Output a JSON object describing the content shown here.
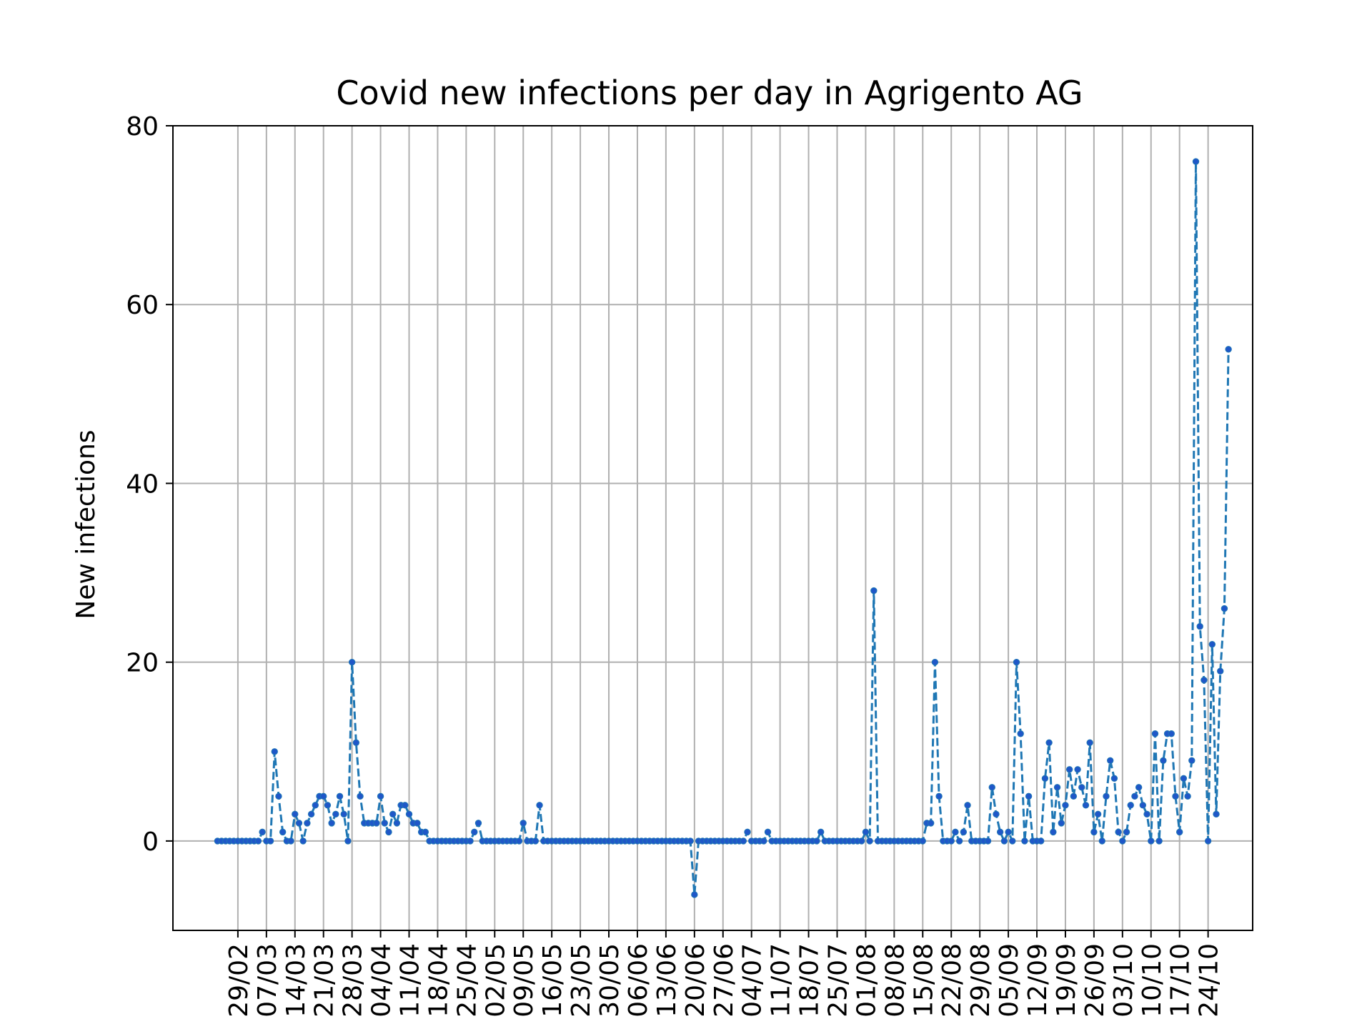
{
  "chart_data": {
    "type": "line",
    "title": "Covid new infections per day in Agrigento AG",
    "xlabel": "",
    "ylabel": "New infections",
    "ylim": [
      -10,
      80
    ],
    "yticks": [
      0,
      20,
      40,
      60,
      80
    ],
    "grid": true,
    "line_style": "dashed",
    "marker": "dot",
    "x_start": "2020-02-24",
    "x_end": "2020-10-24",
    "xticks": [
      "29/02",
      "07/03",
      "14/03",
      "21/03",
      "28/03",
      "04/04",
      "11/04",
      "18/04",
      "25/04",
      "02/05",
      "09/05",
      "16/05",
      "23/05",
      "30/05",
      "06/06",
      "13/06",
      "20/06",
      "27/06",
      "04/07",
      "11/07",
      "18/07",
      "25/07",
      "01/08",
      "08/08",
      "15/08",
      "22/08",
      "29/08",
      "05/09",
      "12/09",
      "19/09",
      "26/09",
      "03/10",
      "10/10",
      "17/10",
      "24/10"
    ],
    "series": [
      {
        "color": "#1f77b4",
        "marker_color": "#1f57c8",
        "values": [
          0,
          0,
          0,
          0,
          0,
          0,
          0,
          0,
          0,
          0,
          0,
          1,
          0,
          0,
          10,
          5,
          1,
          0,
          0,
          3,
          2,
          0,
          2,
          3,
          4,
          5,
          5,
          4,
          2,
          3,
          5,
          3,
          0,
          20,
          11,
          5,
          2,
          2,
          2,
          2,
          5,
          2,
          1,
          3,
          2,
          4,
          4,
          3,
          2,
          2,
          1,
          1,
          0,
          0,
          0,
          0,
          0,
          0,
          0,
          0,
          0,
          0,
          0,
          1,
          2,
          0,
          0,
          0,
          0,
          0,
          0,
          0,
          0,
          0,
          0,
          2,
          0,
          0,
          0,
          4,
          0,
          0,
          0,
          0,
          0,
          0,
          0,
          0,
          0,
          0,
          0,
          0,
          0,
          0,
          0,
          0,
          0,
          0,
          0,
          0,
          0,
          0,
          0,
          0,
          0,
          0,
          0,
          0,
          0,
          0,
          0,
          0,
          0,
          0,
          0,
          0,
          0,
          -6,
          0,
          0,
          0,
          0,
          0,
          0,
          0,
          0,
          0,
          0,
          0,
          0,
          1,
          0,
          0,
          0,
          0,
          1,
          0,
          0,
          0,
          0,
          0,
          0,
          0,
          0,
          0,
          0,
          0,
          0,
          1,
          0,
          0,
          0,
          0,
          0,
          0,
          0,
          0,
          0,
          0,
          1,
          0,
          28,
          0,
          0,
          0,
          0,
          0,
          0,
          0,
          0,
          0,
          0,
          0,
          0,
          2,
          2,
          20,
          5,
          0,
          0,
          0,
          1,
          0,
          1,
          4,
          0,
          0,
          0,
          0,
          0,
          6,
          3,
          1,
          0,
          1,
          0,
          20,
          12,
          0,
          5,
          0,
          0,
          0,
          7,
          11,
          1,
          6,
          2,
          4,
          8,
          5,
          8,
          6,
          4,
          11,
          1,
          3,
          0,
          5,
          9,
          7,
          1,
          0,
          1,
          4,
          5,
          6,
          4,
          3,
          0,
          12,
          0,
          9,
          12,
          12,
          5,
          1,
          7,
          5,
          9,
          76,
          24,
          18,
          0,
          22,
          3,
          19,
          26,
          55
        ]
      }
    ]
  }
}
